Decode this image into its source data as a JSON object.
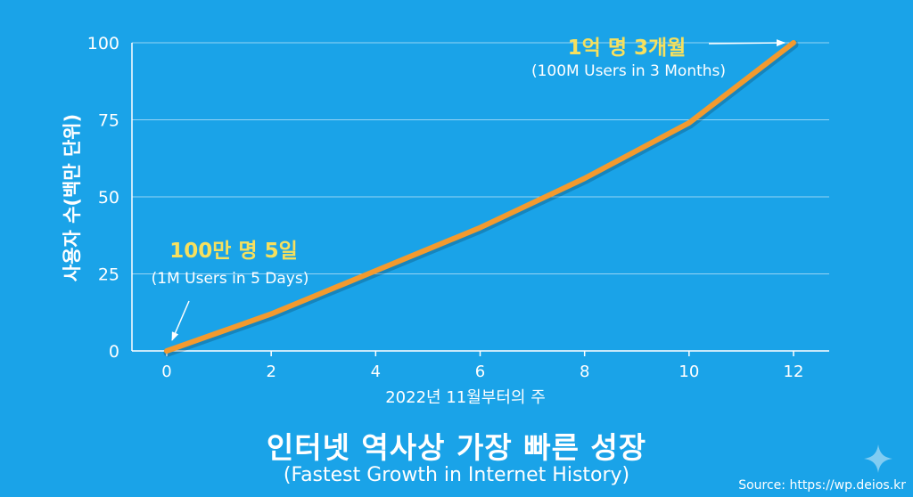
{
  "chart_data": {
    "type": "line",
    "title": "인터넷 역사상 가장 빠른 성장",
    "subtitle": "(Fastest Growth in Internet History)",
    "xlabel": "2022년 11월부터의 주",
    "ylabel": "사용자 수(백만 단위)",
    "xlim": [
      0,
      12
    ],
    "ylim": [
      0,
      100
    ],
    "x_ticks": [
      0,
      2,
      4,
      6,
      8,
      10,
      12
    ],
    "y_ticks": [
      0,
      25,
      50,
      75,
      100
    ],
    "grid": true,
    "series": [
      {
        "x": [
          0,
          1,
          2,
          3,
          4,
          5,
          6,
          7,
          8,
          9,
          10,
          11,
          12
        ],
        "values": [
          0,
          6,
          12,
          19,
          26,
          33,
          40,
          48,
          56,
          65,
          74,
          87,
          100
        ],
        "color": "#f39a2e"
      }
    ],
    "annotations": [
      {
        "x": 0,
        "y": 0,
        "label": "100만 명 5일",
        "sublabel": "(1M Users in 5 Days)"
      },
      {
        "x": 12,
        "y": 100,
        "label": "1억 명 3개월",
        "sublabel": "(100M Users in 3 Months)"
      }
    ]
  },
  "source": "Source: https://wp.deios.kr",
  "colors": {
    "background": "#1aa3e8",
    "line": "#f39a2e",
    "highlight_text": "#f6e05e",
    "axis": "#ffffff"
  }
}
